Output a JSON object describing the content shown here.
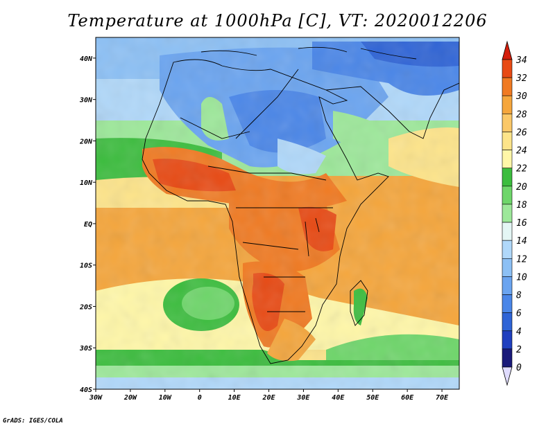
{
  "title": "Temperature at 1000hPa [C], VT: 2020012206",
  "credit": "GrADS: IGES/COLA",
  "map": {
    "lon_range": [
      -30,
      75
    ],
    "lat_range": [
      -40,
      45
    ],
    "lat_labels": [
      "40N",
      "30N",
      "20N",
      "10N",
      "EQ",
      "10S",
      "20S",
      "30S",
      "40S"
    ],
    "lat_values": [
      40,
      30,
      20,
      10,
      0,
      -10,
      -20,
      -30,
      -40
    ],
    "lon_labels": [
      "30W",
      "20W",
      "10W",
      "0",
      "10E",
      "20E",
      "30E",
      "40E",
      "50E",
      "60E",
      "70E"
    ],
    "lon_values": [
      -30,
      -20,
      -10,
      0,
      10,
      20,
      30,
      40,
      50,
      60,
      70
    ]
  },
  "colorbar": {
    "levels": [
      "0",
      "2",
      "4",
      "6",
      "8",
      "10",
      "12",
      "14",
      "16",
      "18",
      "20",
      "22",
      "24",
      "26",
      "28",
      "30",
      "32",
      "34"
    ],
    "colors": [
      "#1a1a7a",
      "#1f3fbf",
      "#2f64d6",
      "#4a86e8",
      "#6aa4f0",
      "#8cc0f5",
      "#b0d8fa",
      "#e4f6f5",
      "#9de89a",
      "#6ed66a",
      "#3cbd3e",
      "#fff7a8",
      "#fde48a",
      "#fbc868",
      "#f5a63c",
      "#f07a22",
      "#e84a14",
      "#d41e0c"
    ],
    "under_color": "#e0dcff",
    "over_color": "#d41e0c"
  }
}
